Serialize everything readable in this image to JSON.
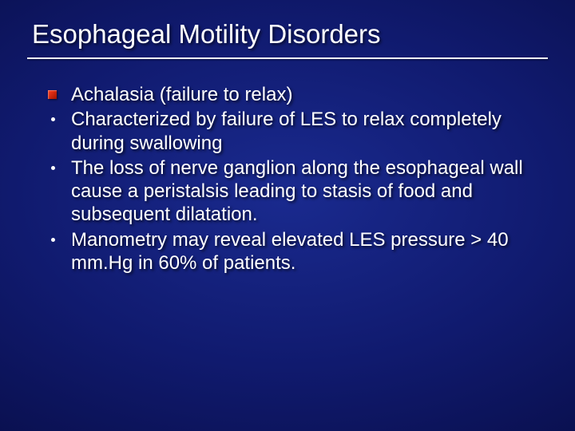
{
  "slide": {
    "title": "Esophageal Motility Disorders",
    "title_color": "#ffffff",
    "title_fontsize": 33,
    "underline_color": "#ffffff",
    "background_gradient": [
      "#1a2a8f",
      "#101a6e",
      "#0a1050",
      "#050830"
    ],
    "body_fontsize": 24,
    "body_color": "#ffffff",
    "text_shadow": "2px 2px 3px rgba(0,0,0,0.7)",
    "bullets": [
      {
        "kind": "box",
        "box_color_start": "#ff3b1f",
        "box_color_end": "#a01400",
        "text": "Achalasia (failure to relax)"
      },
      {
        "kind": "dot",
        "dot_color": "#ffffff",
        "text": "Characterized by failure of LES to relax completely during swallowing"
      },
      {
        "kind": "dot",
        "dot_color": "#ffffff",
        "text": "The loss of nerve ganglion along the esophageal wall cause a peristalsis leading to stasis of food and subsequent dilatation."
      },
      {
        "kind": "dot",
        "dot_color": "#ffffff",
        "text": "Manometry may reveal elevated LES pressure > 40 mm.Hg in 60% of patients."
      }
    ]
  }
}
